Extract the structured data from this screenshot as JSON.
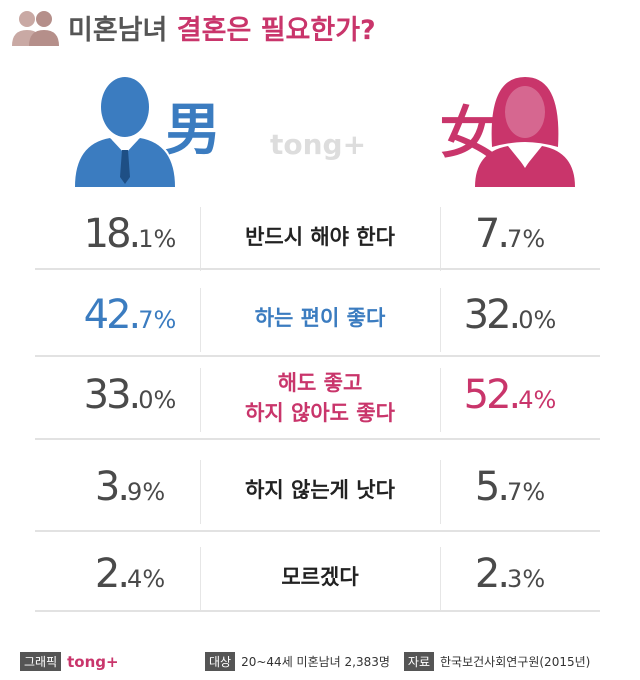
{
  "header": {
    "title_prefix": "미혼남녀",
    "title": "결혼은 필요한가?"
  },
  "columns": {
    "male": "男",
    "female": "女"
  },
  "watermark": "tong+",
  "colors": {
    "male": "#3b7cc0",
    "female": "#c9356b",
    "neutral": "#4a4a4a"
  },
  "rows": [
    {
      "label": [
        "반드시 해야 한다"
      ],
      "male": "18.1%",
      "female": "7.7%",
      "accent": null
    },
    {
      "label": [
        "하는 편이 좋다"
      ],
      "male": "42.7%",
      "female": "32.0%",
      "accent": "male"
    },
    {
      "label": [
        "해도 좋고",
        "하지 않아도 좋다"
      ],
      "male": "33.0%",
      "female": "52.4%",
      "accent": "female"
    },
    {
      "label": [
        "하지 않는게 낫다"
      ],
      "male": "3.9%",
      "female": "5.7%",
      "accent": null
    },
    {
      "label": [
        "모르겠다"
      ],
      "male": "2.4%",
      "female": "2.3%",
      "accent": null
    }
  ],
  "footer": {
    "graphic_tag": "그래픽",
    "graphic_brand": "tong+",
    "target_tag": "대상",
    "target": "20~44세 미혼남녀 2,383명",
    "source_tag": "자료",
    "source": "한국보건사회연구원(2015년)"
  }
}
